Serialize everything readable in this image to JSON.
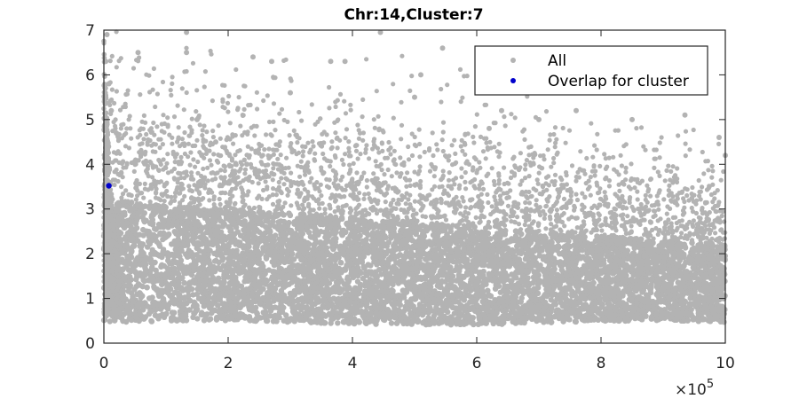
{
  "chart_data": {
    "type": "scatter",
    "title": "Chr:14,Cluster:7",
    "xlabel": "",
    "ylabel": "",
    "xlim": [
      0,
      1000000
    ],
    "ylim": [
      0,
      7
    ],
    "x_ticks": [
      0,
      200000,
      400000,
      600000,
      800000,
      1000000
    ],
    "x_tick_labels": [
      "0",
      "2",
      "4",
      "6",
      "8",
      "10"
    ],
    "x_exponent_label": {
      "base": "×10",
      "exp": "5"
    },
    "y_ticks": [
      0,
      1,
      2,
      3,
      4,
      5,
      6,
      7
    ],
    "y_tick_labels": [
      "0",
      "1",
      "2",
      "3",
      "4",
      "5",
      "6",
      "7"
    ],
    "grid": false,
    "legend_position": "top-right",
    "series": [
      {
        "name": "All",
        "color": "#b3b3b3",
        "marker": "dot",
        "description": "dense cloud of points",
        "values": [
          [
            5000,
            6.9
          ],
          [
            3000,
            6.3
          ],
          [
            8000,
            5.8
          ],
          [
            12000,
            5.2
          ],
          [
            20000,
            4.7
          ],
          [
            55000,
            6.5
          ],
          [
            133000,
            6.95
          ],
          [
            133000,
            6.5
          ],
          [
            240000,
            6.4
          ],
          [
            270000,
            6.3
          ],
          [
            300000,
            5.6
          ],
          [
            365000,
            6.3
          ],
          [
            388000,
            6.3
          ],
          [
            445000,
            6.95
          ],
          [
            545000,
            6.6
          ],
          [
            500000,
            5.5
          ],
          [
            510000,
            6.0
          ],
          [
            620000,
            4.8
          ],
          [
            640000,
            5.2
          ],
          [
            700000,
            5.0
          ],
          [
            760000,
            5.2
          ],
          [
            850000,
            5.0
          ],
          [
            935000,
            5.1
          ],
          [
            990000,
            4.6
          ],
          [
            1000000,
            4.2
          ],
          [
            150000,
            5.0
          ],
          [
            180000,
            4.5
          ],
          [
            230000,
            4.0
          ],
          [
            410000,
            3.6
          ],
          [
            470000,
            3.4
          ],
          [
            590000,
            3.2
          ],
          [
            680000,
            3.0
          ],
          [
            780000,
            2.9
          ],
          [
            880000,
            2.7
          ],
          [
            960000,
            2.5
          ]
        ]
      },
      {
        "name": "Overlap for cluster",
        "color": "#0000cc",
        "marker": "dot",
        "values": [
          [
            8000,
            3.52
          ]
        ]
      }
    ]
  }
}
